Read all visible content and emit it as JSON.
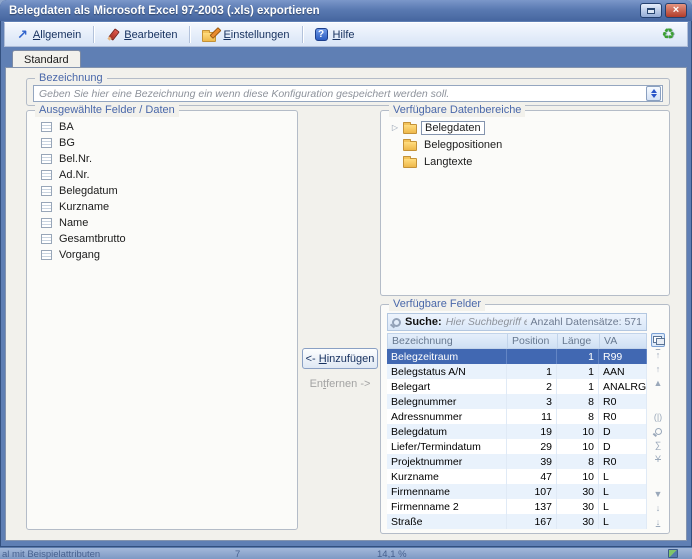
{
  "colors": {
    "frame": "#5f7fb4",
    "content": "#f2f1ec",
    "selection": "#4168b2",
    "accent": "#2a55c8",
    "close": "#b13c2a",
    "folder": "#f2bf4e"
  },
  "window": {
    "title": "Belegdaten als Microsoft Excel 97-2003 (.xls) exportieren",
    "close_glyph": "×"
  },
  "toolbar": {
    "items": [
      {
        "label": "Allgemein",
        "underline": 0,
        "icon": "arrow-up-right",
        "glyph": "↗"
      },
      {
        "label": "Bearbeiten",
        "underline": 0,
        "icon": "red-pencil"
      },
      {
        "label": "Einstellungen",
        "underline": 0,
        "icon": "folder-settings"
      },
      {
        "label": "Hilfe",
        "underline": 0,
        "icon": "help-badge",
        "glyph": "?"
      }
    ],
    "right_icon": "refresh-export",
    "right_glyph": "♻"
  },
  "tab": {
    "label": "Standard"
  },
  "bezeichnung": {
    "group_label": "Bezeichnung",
    "placeholder": "Geben Sie hier eine Bezeichnung ein wenn diese Konfiguration gespeichert werden soll.",
    "value": ""
  },
  "selected_fields": {
    "group_label": "Ausgewählte Felder / Daten",
    "items": [
      "BA",
      "BG",
      "Bel.Nr.",
      "Ad.Nr.",
      "Belegdatum",
      "Kurzname",
      "Name",
      "Gesamtbrutto",
      "Vorgang"
    ]
  },
  "transfer": {
    "add_label": "<- Hinzufügen",
    "add_underline": 3,
    "remove_label": "Entfernen ->",
    "remove_underline": 2
  },
  "data_areas": {
    "group_label": "Verfügbare Datenbereiche",
    "items": [
      {
        "label": "Belegdaten",
        "selected": true,
        "expandable": true
      },
      {
        "label": "Belegpositionen",
        "selected": false,
        "expandable": false
      },
      {
        "label": "Langtexte",
        "selected": false,
        "expandable": false
      }
    ]
  },
  "available_fields": {
    "group_label": "Verfügbare Felder",
    "search_label": "Suche:",
    "search_placeholder": "Hier Suchbegriff eingebe",
    "count_label": "Anzahl Datensätze: 571",
    "columns": [
      "Bezeichnung",
      "Position",
      "Länge",
      "VA"
    ],
    "rows": [
      {
        "name": "Belegzeitraum",
        "position": "",
        "length": "1",
        "va": "R99",
        "selected": true
      },
      {
        "name": "Belegstatus A/N",
        "position": "1",
        "length": "1",
        "va": "AAN",
        "selected": false
      },
      {
        "name": "Belegart",
        "position": "2",
        "length": "1",
        "va": "ANALRGI",
        "selected": false
      },
      {
        "name": "Belegnummer",
        "position": "3",
        "length": "8",
        "va": "R0",
        "selected": false
      },
      {
        "name": "Adressnummer",
        "position": "11",
        "length": "8",
        "va": "R0",
        "selected": false
      },
      {
        "name": "Belegdatum",
        "position": "19",
        "length": "10",
        "va": "D",
        "selected": false
      },
      {
        "name": "Liefer/Termindatum",
        "position": "29",
        "length": "10",
        "va": "D",
        "selected": false
      },
      {
        "name": "Projektnummer",
        "position": "39",
        "length": "8",
        "va": "R0",
        "selected": false
      },
      {
        "name": "Kurzname",
        "position": "47",
        "length": "10",
        "va": "L",
        "selected": false
      },
      {
        "name": "Firmenname",
        "position": "107",
        "length": "30",
        "va": "L",
        "selected": false
      },
      {
        "name": "Firmenname 2",
        "position": "137",
        "length": "30",
        "va": "L",
        "selected": false
      },
      {
        "name": "Straße",
        "position": "167",
        "length": "30",
        "va": "L",
        "selected": false
      }
    ],
    "side_toolbar": [
      {
        "name": "column-chooser-icon",
        "css": "cc",
        "active": true
      },
      {
        "name": "move-first-icon",
        "glyph": "↑",
        "cls": "ov"
      },
      {
        "name": "move-up-icon",
        "glyph": "↑"
      },
      {
        "name": "scroll-up-icon",
        "glyph": "▲"
      },
      {
        "spacer": true
      },
      {
        "name": "expression-icon",
        "glyph": "(|)"
      },
      {
        "name": "search-icon",
        "css": "mag"
      },
      {
        "name": "sum-icon",
        "glyph": "∑"
      },
      {
        "name": "filter-icon",
        "glyph": "Y",
        "cls": "strike"
      },
      {
        "spacer": true
      },
      {
        "name": "scroll-down-icon",
        "glyph": "▼"
      },
      {
        "name": "move-down-icon",
        "glyph": "↓"
      },
      {
        "name": "move-last-icon",
        "glyph": "↓",
        "cls": "un"
      }
    ]
  },
  "background_statusbar": {
    "left_fragment": "al mit Beispielattributen",
    "value_a": "7",
    "value_b": "14,1 %"
  }
}
